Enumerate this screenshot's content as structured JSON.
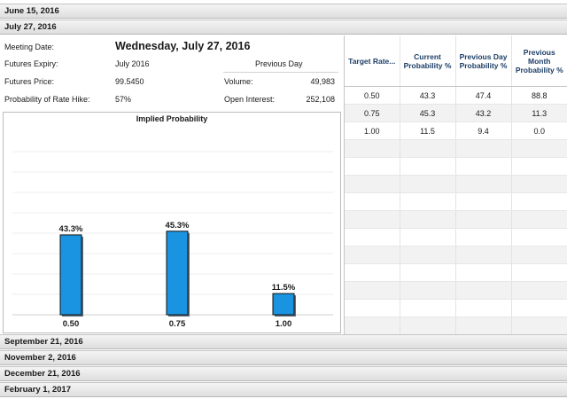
{
  "meetings_above": [
    "June 15, 2016"
  ],
  "active_meeting": {
    "header": "July 27, 2016",
    "meeting_date_label": "Meeting Date:",
    "meeting_date_value": "Wednesday, July 27, 2016",
    "futures_expiry_label": "Futures Expiry:",
    "futures_expiry_value": "July 2016",
    "futures_price_label": "Futures Price:",
    "futures_price_value": "99.5450",
    "probability_label": "Probability of Rate Hike:",
    "probability_value": "57%",
    "previous_day_label": "Previous Day",
    "volume_label": "Volume:",
    "volume_value": "49,983",
    "open_interest_label": "Open Interest:",
    "open_interest_value": "252,108"
  },
  "chart_data": {
    "type": "bar",
    "title": "Implied Probability",
    "categories": [
      "0.50",
      "0.75",
      "1.00"
    ],
    "values": [
      43.3,
      45.3,
      11.5
    ],
    "value_labels": [
      "43.3%",
      "45.3%",
      "11.5%"
    ],
    "ylim": [
      0,
      100
    ],
    "bar_color": "#1a94e0",
    "grid": true
  },
  "probability_table": {
    "headers": [
      "Target Rate...",
      "Current Probability %",
      "Previous Day Probability %",
      "Previous Month Probability %"
    ],
    "rows": [
      [
        "0.50",
        "43.3",
        "47.4",
        "88.8"
      ],
      [
        "0.75",
        "45.3",
        "43.2",
        "11.3"
      ],
      [
        "1.00",
        "11.5",
        "9.4",
        "0.0"
      ]
    ]
  },
  "meetings_below": [
    "September 21, 2016",
    "November 2, 2016",
    "December 21, 2016",
    "February 1, 2017"
  ]
}
